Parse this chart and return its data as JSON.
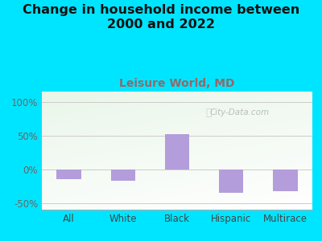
{
  "title": "Change in household income between\n2000 and 2022",
  "subtitle": "Leisure World, MD",
  "categories": [
    "All",
    "White",
    "Black",
    "Hispanic",
    "Multirace"
  ],
  "values": [
    -15,
    -17,
    52,
    -35,
    -33
  ],
  "bar_color": "#b39ddb",
  "title_fontsize": 11.5,
  "subtitle_fontsize": 10,
  "subtitle_color": "#996666",
  "tick_label_fontsize": 8.5,
  "yticks": [
    -50,
    0,
    50,
    100
  ],
  "ytick_labels": [
    "-50%",
    "0%",
    "50%",
    "100%"
  ],
  "ylim": [
    -60,
    115
  ],
  "background_outer": "#00e5ff",
  "grid_color": "#cccccc",
  "watermark": "City-Data.com",
  "bar_width": 0.45
}
